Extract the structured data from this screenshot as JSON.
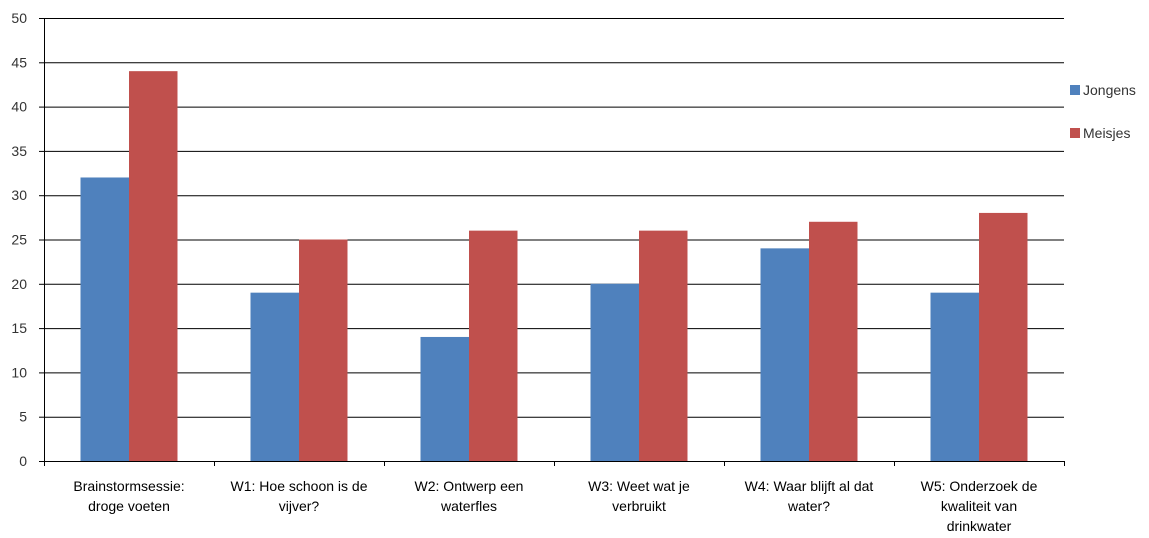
{
  "chart_data": {
    "type": "bar",
    "categories": [
      [
        "Brainstormsessie:",
        "droge voeten"
      ],
      [
        "W1: Hoe schoon is de",
        "vijver?"
      ],
      [
        "W2: Ontwerp een",
        "waterfles"
      ],
      [
        "W3: Weet wat je",
        "verbruikt"
      ],
      [
        "W4: Waar blijft al dat",
        "water?"
      ],
      [
        "W5: Onderzoek de",
        "kwaliteit van",
        "drinkwater"
      ]
    ],
    "series": [
      {
        "name": "Jongens",
        "color": "#4f81bd",
        "values": [
          32,
          19,
          14,
          20,
          24,
          19
        ]
      },
      {
        "name": "Meisjes",
        "color": "#c0504d",
        "values": [
          44,
          25,
          26,
          26,
          27,
          28
        ]
      }
    ],
    "title": "",
    "xlabel": "",
    "ylabel": "",
    "ylim": [
      0,
      50
    ],
    "yticks": [
      0,
      5,
      10,
      15,
      20,
      25,
      30,
      35,
      40,
      45,
      50
    ],
    "grid": true,
    "legend": "right"
  }
}
